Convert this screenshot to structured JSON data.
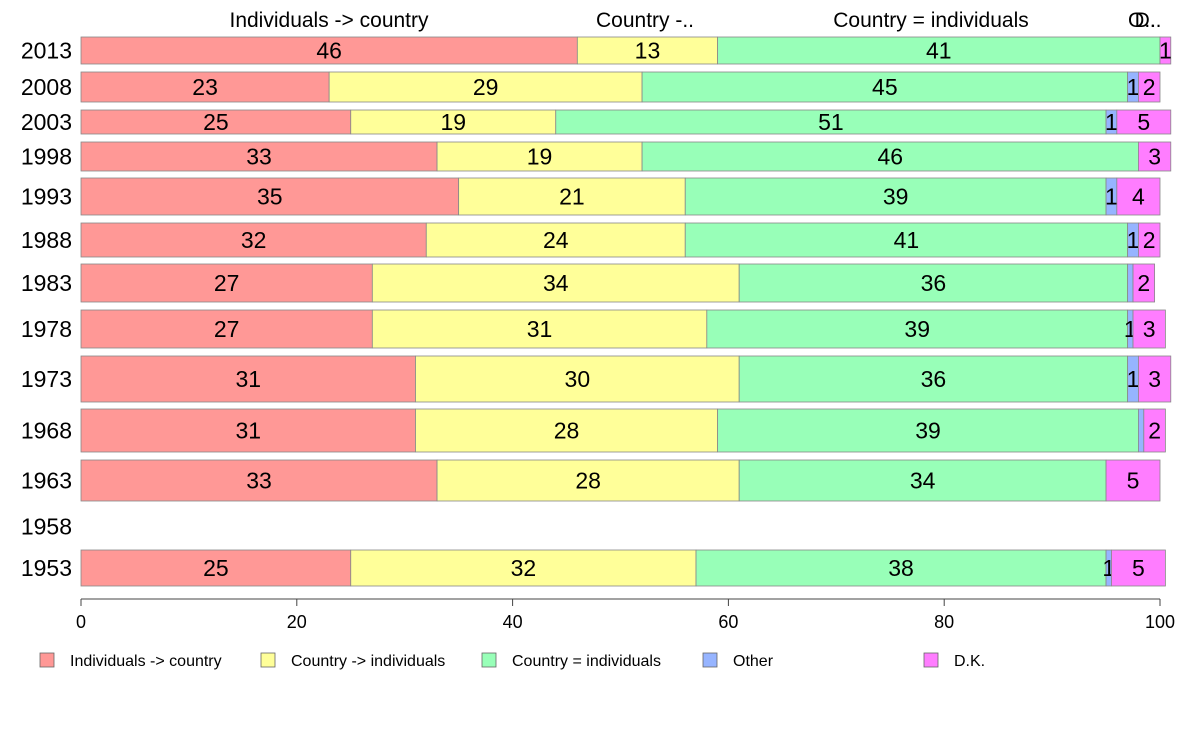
{
  "chart_data": {
    "type": "bar",
    "orientation": "horizontal",
    "stacked": true,
    "categories": [
      "2013",
      "2008",
      "2003",
      "1998",
      "1993",
      "1988",
      "1983",
      "1978",
      "1973",
      "1968",
      "1963",
      "1958",
      "1953"
    ],
    "series": [
      {
        "name": "Individuals -> country",
        "color": "#FF9896",
        "values": [
          46,
          23,
          25,
          33,
          35,
          32,
          27,
          27,
          31,
          31,
          33,
          null,
          25
        ]
      },
      {
        "name": "Country -> individuals",
        "color": "#FFFF99",
        "values": [
          13,
          29,
          19,
          19,
          21,
          24,
          34,
          31,
          30,
          28,
          28,
          null,
          32
        ]
      },
      {
        "name": "Country = individuals",
        "color": "#98FFB8",
        "values": [
          41,
          45,
          51,
          46,
          39,
          41,
          36,
          39,
          36,
          39,
          34,
          null,
          38
        ]
      },
      {
        "name": "Other",
        "color": "#96B4FF",
        "values": [
          0,
          1,
          1,
          0,
          1,
          1,
          0.5,
          0.5,
          1,
          0.5,
          0,
          null,
          0.5
        ]
      },
      {
        "name": "D.K.",
        "color": "#FF7DFF",
        "values": [
          1,
          2,
          5,
          3,
          4,
          2,
          2,
          3,
          3,
          2,
          5,
          null,
          5
        ]
      }
    ],
    "labels": [
      [
        "46",
        "13",
        "41",
        "",
        "1"
      ],
      [
        "23",
        "29",
        "45",
        "1",
        "2"
      ],
      [
        "25",
        "19",
        "51",
        "1",
        "5"
      ],
      [
        "33",
        "19",
        "46",
        "",
        "3"
      ],
      [
        "35",
        "21",
        "39",
        "1",
        "4"
      ],
      [
        "32",
        "24",
        "41",
        "1",
        "2"
      ],
      [
        "27",
        "34",
        "36",
        "",
        "2"
      ],
      [
        "27",
        "31",
        "39",
        "1",
        "3"
      ],
      [
        "31",
        "30",
        "36",
        "1",
        "3"
      ],
      [
        "31",
        "28",
        "39",
        "",
        "2"
      ],
      [
        "33",
        "28",
        "34",
        "",
        "5"
      ],
      [
        "",
        "",
        "",
        "",
        ""
      ],
      [
        "25",
        "32",
        "38",
        "1",
        "5"
      ]
    ],
    "top_labels": [
      "Individuals -> country",
      "Country -..",
      "Country = individuals",
      "O..",
      "D.."
    ],
    "xlim": [
      0,
      100
    ],
    "xticks": [
      0,
      20,
      40,
      60,
      80,
      100
    ],
    "legend": [
      "Individuals -> country",
      "Country -> individuals",
      "Country = individuals",
      "Other",
      "D.K."
    ],
    "legend_position": "bottom",
    "grid": false
  }
}
